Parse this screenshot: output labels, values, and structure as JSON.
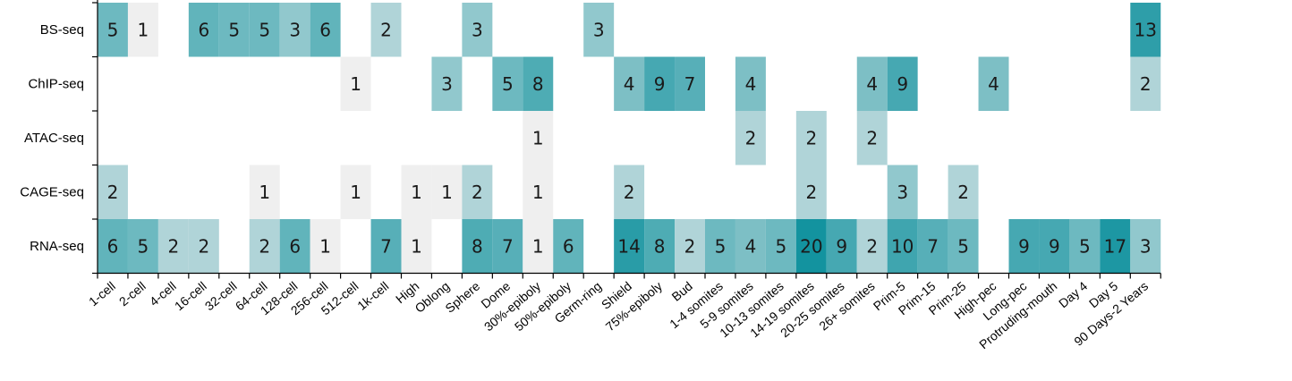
{
  "chart_data": {
    "type": "heatmap",
    "title": "",
    "xlabel": "",
    "ylabel": "",
    "rows": [
      "BS-seq",
      "ChIP-seq",
      "ATAC-seq",
      "CAGE-seq",
      "RNA-seq"
    ],
    "columns": [
      "1-cell",
      "2-cell",
      "4-cell",
      "16-cell",
      "32-cell",
      "64-cell",
      "128-cell",
      "256-cell",
      "512-cell",
      "1k-cell",
      "High",
      "Oblong",
      "Sphere",
      "Dome",
      "30%-epiboly",
      "50%-epiboly",
      "Germ-ring",
      "Shield",
      "75%-epiboly",
      "Bud",
      "1-4 somites",
      "5-9 somites",
      "10-13 somites",
      "14-19 somites",
      "20-25 somites",
      "26+ somites",
      "Prim-5",
      "Prim-15",
      "Prim-25",
      "High-pec",
      "Long-pec",
      "Protruding-mouth",
      "Day 4",
      "Day 5",
      "90 Days-2 Years"
    ],
    "values": [
      [
        5,
        1,
        null,
        6,
        5,
        5,
        3,
        6,
        null,
        2,
        null,
        null,
        3,
        null,
        null,
        null,
        3,
        null,
        null,
        null,
        null,
        null,
        null,
        null,
        null,
        null,
        null,
        null,
        null,
        null,
        null,
        null,
        null,
        null,
        13
      ],
      [
        null,
        null,
        null,
        null,
        null,
        null,
        null,
        null,
        1,
        null,
        null,
        3,
        null,
        5,
        8,
        null,
        null,
        4,
        9,
        7,
        null,
        4,
        null,
        null,
        null,
        4,
        9,
        null,
        null,
        4,
        null,
        null,
        null,
        null,
        2
      ],
      [
        null,
        null,
        null,
        null,
        null,
        null,
        null,
        null,
        null,
        null,
        null,
        null,
        null,
        null,
        1,
        null,
        null,
        null,
        null,
        null,
        null,
        2,
        null,
        2,
        null,
        2,
        null,
        null,
        null,
        null,
        null,
        null,
        null,
        null,
        null
      ],
      [
        2,
        null,
        null,
        null,
        null,
        1,
        null,
        null,
        1,
        null,
        1,
        1,
        2,
        null,
        1,
        null,
        null,
        2,
        null,
        null,
        null,
        null,
        null,
        2,
        null,
        null,
        3,
        null,
        2,
        null,
        null,
        null,
        null,
        null,
        null
      ],
      [
        6,
        5,
        2,
        2,
        null,
        2,
        6,
        1,
        null,
        7,
        1,
        null,
        8,
        7,
        1,
        6,
        null,
        14,
        8,
        2,
        5,
        4,
        5,
        20,
        9,
        2,
        10,
        7,
        5,
        null,
        9,
        9,
        5,
        17,
        3
      ]
    ],
    "color_scale": {
      "low": "#efefef",
      "high": "#13939f",
      "min": 1,
      "max": 20
    },
    "grid": false,
    "legend": "none"
  }
}
